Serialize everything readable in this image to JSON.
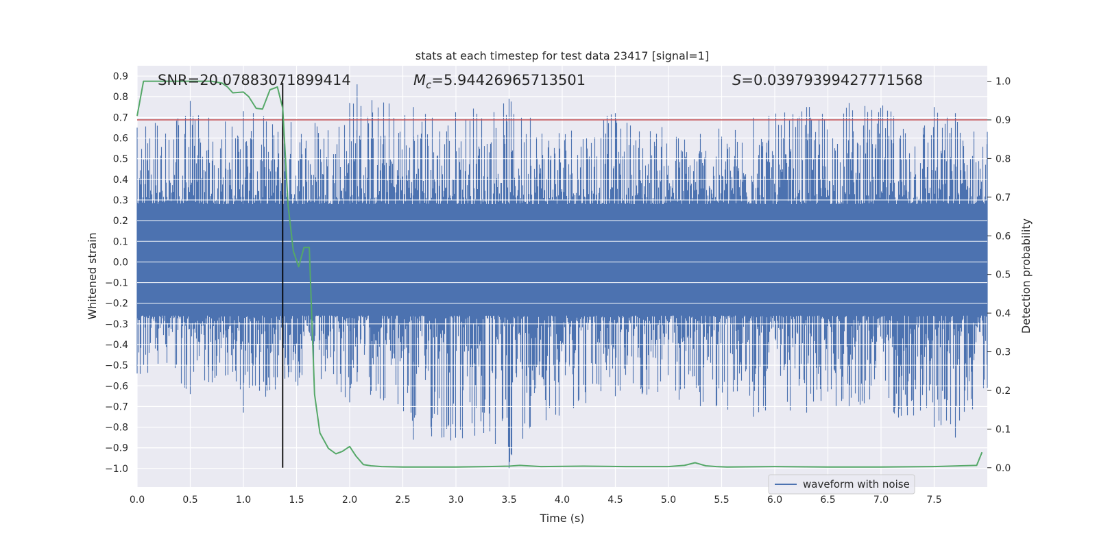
{
  "chart_data": {
    "type": "line",
    "title": "stats at each timestep for test data 23417 [signal=1]",
    "xlabel": "Time (s)",
    "ylabel": "Whitened strain",
    "y2label": "Detection probability",
    "xlim": [
      0.0,
      8.0
    ],
    "ylim": [
      -1.09,
      0.95
    ],
    "y2lim": [
      -0.05,
      1.04
    ],
    "x_ticks": [
      "0.0",
      "0.5",
      "1.0",
      "1.5",
      "2.0",
      "2.5",
      "3.0",
      "3.5",
      "4.0",
      "4.5",
      "5.0",
      "5.5",
      "6.0",
      "6.5",
      "7.0",
      "7.5"
    ],
    "y_ticks": [
      "0.9",
      "0.8",
      "0.7",
      "0.6",
      "0.5",
      "0.4",
      "0.3",
      "0.2",
      "0.1",
      "0.0",
      "−0.1",
      "−0.2",
      "−0.3",
      "−0.4",
      "−0.5",
      "−0.6",
      "−0.7",
      "−0.8",
      "−0.9",
      "−1.0"
    ],
    "y2_ticks": [
      "1.0",
      "0.9",
      "0.8",
      "0.7",
      "0.6",
      "0.5",
      "0.4",
      "0.3",
      "0.2",
      "0.1",
      "0.0"
    ],
    "grid": true,
    "legend_position": "lower-right",
    "annotations": {
      "snr": "SNR=20.07883071899414",
      "mc_symbol": "M",
      "mc_sub": "c",
      "mc_value": "=5.94426965713501",
      "s_symbol": "S",
      "s_value": "=0.03979399427771568"
    },
    "threshold": 0.9,
    "marker_time": 1.37,
    "series": [
      {
        "name": "waveform with noise",
        "axis": "left",
        "style": "dense-noise",
        "envelope": [
          {
            "x": 0.0,
            "max": 0.65,
            "min": -0.54
          },
          {
            "x": 0.5,
            "max": 0.78,
            "min": -0.64
          },
          {
            "x": 0.83,
            "max": 0.68,
            "min": -0.55
          },
          {
            "x": 1.0,
            "max": 0.73,
            "min": -0.73
          },
          {
            "x": 1.37,
            "max": 0.7,
            "min": -0.61
          },
          {
            "x": 2.0,
            "max": 0.77,
            "min": -0.68
          },
          {
            "x": 2.07,
            "max": 0.86,
            "min": -0.58
          },
          {
            "x": 2.6,
            "max": 0.75,
            "min": -0.86
          },
          {
            "x": 3.5,
            "max": 0.79,
            "min": -1.0
          },
          {
            "x": 3.7,
            "max": 0.7,
            "min": -0.8
          },
          {
            "x": 4.5,
            "max": 0.72,
            "min": -0.65
          },
          {
            "x": 5.3,
            "max": 0.62,
            "min": -0.7
          },
          {
            "x": 5.8,
            "max": 0.7,
            "min": -0.75
          },
          {
            "x": 6.3,
            "max": 0.75,
            "min": -0.73
          },
          {
            "x": 6.7,
            "max": 0.77,
            "min": -0.7
          },
          {
            "x": 7.5,
            "max": 0.75,
            "min": -0.8
          },
          {
            "x": 7.7,
            "max": 0.72,
            "min": -0.85
          },
          {
            "x": 8.0,
            "max": 0.63,
            "min": -0.61
          }
        ]
      },
      {
        "axis": "right",
        "color": "#55a868",
        "x": [
          0.0,
          0.06,
          0.15,
          0.3,
          0.5,
          0.7,
          0.8,
          0.85,
          0.9,
          1.0,
          1.05,
          1.12,
          1.18,
          1.25,
          1.32,
          1.37,
          1.42,
          1.47,
          1.52,
          1.57,
          1.62,
          1.67,
          1.72,
          1.8,
          1.87,
          1.93,
          2.0,
          2.06,
          2.13,
          2.2,
          2.3,
          2.5,
          3.0,
          3.3,
          3.5,
          3.6,
          3.8,
          4.2,
          4.6,
          5.0,
          5.15,
          5.25,
          5.35,
          5.45,
          5.55,
          6.0,
          6.5,
          7.0,
          7.5,
          7.9,
          7.95
        ],
        "y": [
          0.91,
          1.0,
          1.0,
          1.0,
          1.0,
          1.0,
          0.995,
          0.985,
          0.97,
          0.972,
          0.96,
          0.93,
          0.928,
          0.978,
          0.985,
          0.93,
          0.68,
          0.56,
          0.52,
          0.57,
          0.57,
          0.19,
          0.09,
          0.05,
          0.036,
          0.042,
          0.055,
          0.03,
          0.008,
          0.005,
          0.003,
          0.002,
          0.002,
          0.003,
          0.004,
          0.006,
          0.003,
          0.004,
          0.003,
          0.003,
          0.006,
          0.013,
          0.005,
          0.003,
          0.002,
          0.003,
          0.002,
          0.002,
          0.003,
          0.006,
          0.04
        ]
      }
    ]
  }
}
